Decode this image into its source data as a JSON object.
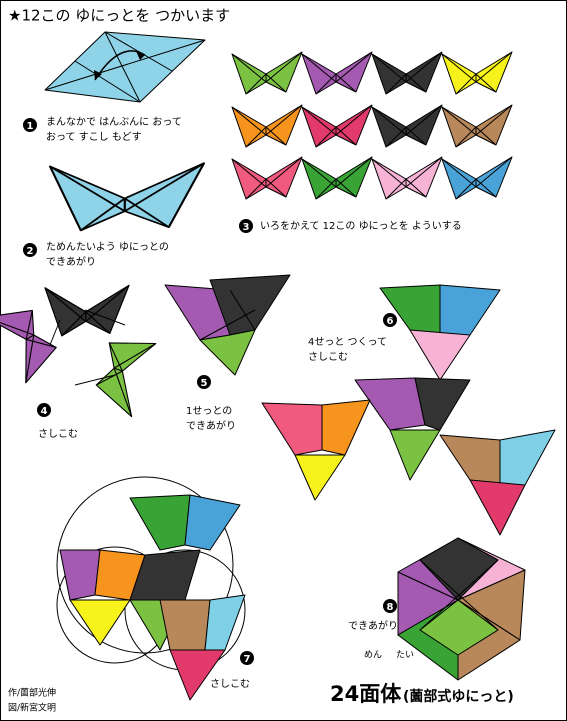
{
  "title": "★12この ゆにっとを つかいます",
  "steps": [
    {
      "number": "1",
      "lines": [
        "まんなかで はんぶんに おって",
        "おって すこし もどす"
      ]
    },
    {
      "number": "2",
      "lines": [
        "ためんたいよう ゆにっとの",
        "できあがり"
      ]
    },
    {
      "number": "3",
      "lines": [
        "いろをかえて 12この ゆにっとを よういする"
      ]
    },
    {
      "number": "4",
      "lines": [
        "さしこむ"
      ]
    },
    {
      "number": "5",
      "lines": [
        "1せっとの",
        "できあがり"
      ]
    },
    {
      "number": "6",
      "lines": [
        "4せっと つくって",
        "さしこむ"
      ]
    },
    {
      "number": "7",
      "lines": [
        "さしこむ"
      ]
    },
    {
      "number": "8",
      "lines": [
        "できあがり"
      ]
    }
  ],
  "result": {
    "ruby": [
      "めん",
      "たい"
    ],
    "name": "24面体",
    "subtitle": "(薗部式ゆにっと)"
  },
  "credits": [
    "作/薗部光伸",
    "図/新宮文明"
  ]
}
